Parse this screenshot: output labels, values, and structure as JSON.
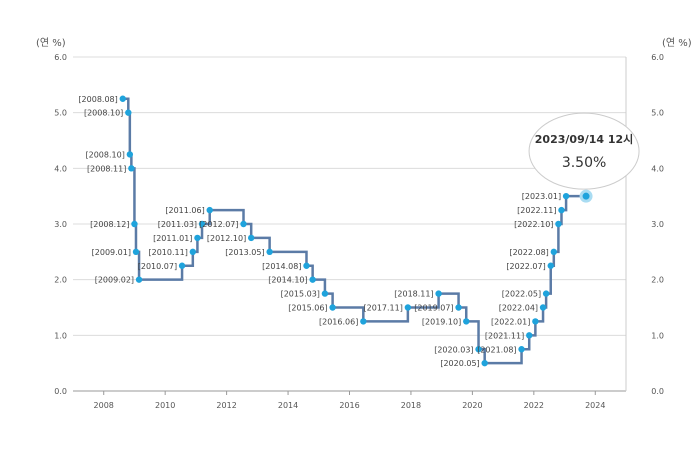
{
  "chart_data": {
    "type": "line",
    "step": "after",
    "ylabel_left": "(연 %)",
    "ylabel_right": "(연 %)",
    "ylim": [
      0,
      6
    ],
    "yticks": [
      "0.0",
      "1.0",
      "2.0",
      "3.0",
      "4.0",
      "5.0",
      "6.0"
    ],
    "xlim": [
      2007,
      2025
    ],
    "xticks": [
      "2008",
      "2010",
      "2012",
      "2014",
      "2016",
      "2018",
      "2020",
      "2022",
      "2024"
    ],
    "grid": true,
    "line_color": "#5b7ba6",
    "point_color": "#1fa3dc",
    "points": [
      {
        "label": "[2008.08]",
        "x": 2008.62,
        "y": 5.25
      },
      {
        "label": "[2008.10]",
        "x": 2008.8,
        "y": 5.0
      },
      {
        "label": "[2008.10]",
        "x": 2008.85,
        "y": 4.25
      },
      {
        "label": "[2008.11]",
        "x": 2008.9,
        "y": 4.0
      },
      {
        "label": "[2008.12]",
        "x": 2009.0,
        "y": 3.0
      },
      {
        "label": "[2009.01]",
        "x": 2009.05,
        "y": 2.5
      },
      {
        "label": "[2009.02]",
        "x": 2009.15,
        "y": 2.0
      },
      {
        "label": "[2010.07]",
        "x": 2010.55,
        "y": 2.25
      },
      {
        "label": "[2010.11]",
        "x": 2010.9,
        "y": 2.5
      },
      {
        "label": "[2011.01]",
        "x": 2011.05,
        "y": 2.75
      },
      {
        "label": "[2011.03]",
        "x": 2011.2,
        "y": 3.0
      },
      {
        "label": "[2011.06]",
        "x": 2011.45,
        "y": 3.25
      },
      {
        "label": "[2012.07]",
        "x": 2012.55,
        "y": 3.0
      },
      {
        "label": "[2012.10]",
        "x": 2012.8,
        "y": 2.75
      },
      {
        "label": "[2013.05]",
        "x": 2013.4,
        "y": 2.5
      },
      {
        "label": "[2014.08]",
        "x": 2014.6,
        "y": 2.25
      },
      {
        "label": "[2014.10]",
        "x": 2014.8,
        "y": 2.0
      },
      {
        "label": "[2015.03]",
        "x": 2015.2,
        "y": 1.75
      },
      {
        "label": "[2015.06]",
        "x": 2015.45,
        "y": 1.5
      },
      {
        "label": "[2016.06]",
        "x": 2016.45,
        "y": 1.25
      },
      {
        "label": "[2017.11]",
        "x": 2017.9,
        "y": 1.5
      },
      {
        "label": "[2018.11]",
        "x": 2018.9,
        "y": 1.75
      },
      {
        "label": "[2019.07]",
        "x": 2019.55,
        "y": 1.5
      },
      {
        "label": "[2019.10]",
        "x": 2019.8,
        "y": 1.25
      },
      {
        "label": "[2020.03]",
        "x": 2020.2,
        "y": 0.75
      },
      {
        "label": "[2020.05]",
        "x": 2020.4,
        "y": 0.5
      },
      {
        "label": "[2021.08]",
        "x": 2021.6,
        "y": 0.75
      },
      {
        "label": "[2021.11]",
        "x": 2021.85,
        "y": 1.0
      },
      {
        "label": "[2022.01]",
        "x": 2022.05,
        "y": 1.25
      },
      {
        "label": "[2022.04]",
        "x": 2022.3,
        "y": 1.5
      },
      {
        "label": "[2022.05]",
        "x": 2022.4,
        "y": 1.75
      },
      {
        "label": "[2022.07]",
        "x": 2022.55,
        "y": 2.25
      },
      {
        "label": "[2022.08]",
        "x": 2022.65,
        "y": 2.5
      },
      {
        "label": "[2022.10]",
        "x": 2022.8,
        "y": 3.0
      },
      {
        "label": "[2022.11]",
        "x": 2022.9,
        "y": 3.25
      },
      {
        "label": "[2023.01]",
        "x": 2023.05,
        "y": 3.5
      }
    ],
    "end_x": 2023.7,
    "tooltip": {
      "date": "2023/09/14 12시",
      "value": "3.50%",
      "x": 2023.7,
      "y": 3.5
    }
  }
}
